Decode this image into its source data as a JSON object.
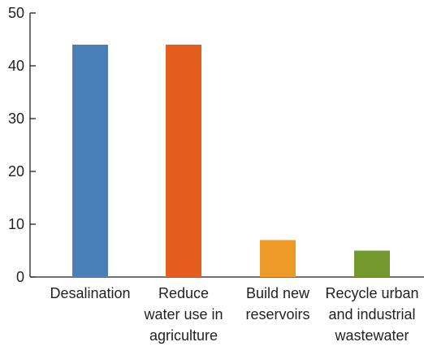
{
  "chart_data": {
    "type": "bar",
    "categories": [
      [
        "Desalination"
      ],
      [
        "Reduce",
        "water use in",
        "agriculture"
      ],
      [
        "Build new",
        "reservoirs"
      ],
      [
        "Recycle urban",
        "and industrial",
        "wastewater"
      ]
    ],
    "values": [
      44,
      44,
      7,
      5
    ],
    "colors": [
      "#4a7fb8",
      "#e65d1f",
      "#ec9a25",
      "#73992e"
    ],
    "ylim": [
      0,
      50
    ],
    "yticks": [
      0,
      10,
      20,
      30,
      40,
      50
    ],
    "title": "",
    "xlabel": "",
    "ylabel": "",
    "grid": false,
    "legend": "none"
  }
}
